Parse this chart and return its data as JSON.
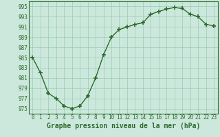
{
  "x": [
    0,
    1,
    2,
    3,
    4,
    5,
    6,
    7,
    8,
    9,
    10,
    11,
    12,
    13,
    14,
    15,
    16,
    17,
    18,
    19,
    20,
    21,
    22,
    23
  ],
  "y": [
    985,
    982,
    978,
    977,
    975.5,
    975,
    975.5,
    977.5,
    981,
    985.5,
    989,
    990.5,
    991,
    991.5,
    991.8,
    993.5,
    994,
    994.5,
    994.8,
    994.6,
    993.5,
    993,
    991.5,
    991.2
  ],
  "line_color": "#2d6a2d",
  "marker_color": "#2d6a2d",
  "bg_color": "#cce8dc",
  "grid_color": "#99ccb3",
  "xlabel": "Graphe pression niveau de la mer (hPa)",
  "yticks": [
    975,
    977,
    979,
    981,
    983,
    985,
    987,
    989,
    991,
    993,
    995
  ],
  "xticks": [
    0,
    1,
    2,
    3,
    4,
    5,
    6,
    7,
    8,
    9,
    10,
    11,
    12,
    13,
    14,
    15,
    16,
    17,
    18,
    19,
    20,
    21,
    22,
    23
  ],
  "ylim": [
    974,
    996
  ],
  "xlim": [
    -0.5,
    23.5
  ],
  "xlabel_fontsize": 7,
  "tick_fontsize": 5.5,
  "marker_size": 4,
  "line_width": 1.0
}
